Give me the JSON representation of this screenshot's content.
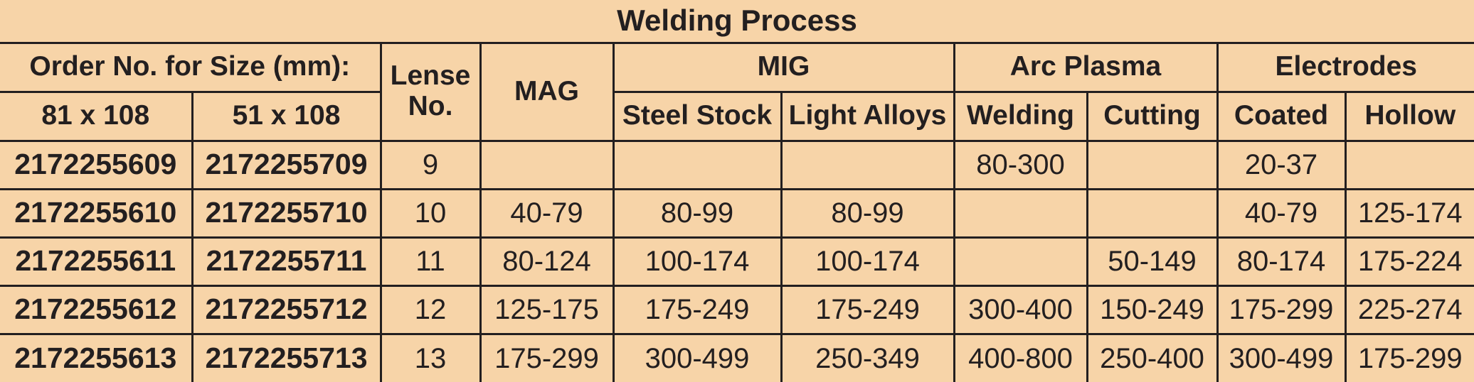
{
  "header": {
    "title": "Welding Process"
  },
  "table": {
    "groups": [
      "Order No. for Size (mm):",
      "Lense No.",
      "MAG",
      "MIG",
      "Arc Plasma",
      "Electrodes"
    ],
    "subheaders": [
      "81 x 108",
      "51 x 108",
      "Steel Stock",
      "Light Alloys",
      "Welding",
      "Cutting",
      "Coated",
      "Hollow"
    ],
    "rows": [
      [
        "2172255609",
        "2172255709",
        "9",
        null,
        null,
        null,
        "80-300",
        null,
        "20-37",
        null
      ],
      [
        "2172255610",
        "2172255710",
        "10",
        "40-79",
        "80-99",
        "80-99",
        null,
        null,
        "40-79",
        "125-174"
      ],
      [
        "2172255611",
        "2172255711",
        "11",
        "80-124",
        "100-174",
        "100-174",
        null,
        "50-149",
        "80-174",
        "175-224"
      ],
      [
        "2172255612",
        "2172255712",
        "12",
        "125-175",
        "175-249",
        "175-249",
        "300-400",
        "150-249",
        "175-299",
        "225-274"
      ],
      [
        "2172255613",
        "2172255713",
        "13",
        "175-299",
        "300-499",
        "250-349",
        "400-800",
        "250-400",
        "300-499",
        "175-299"
      ]
    ]
  }
}
